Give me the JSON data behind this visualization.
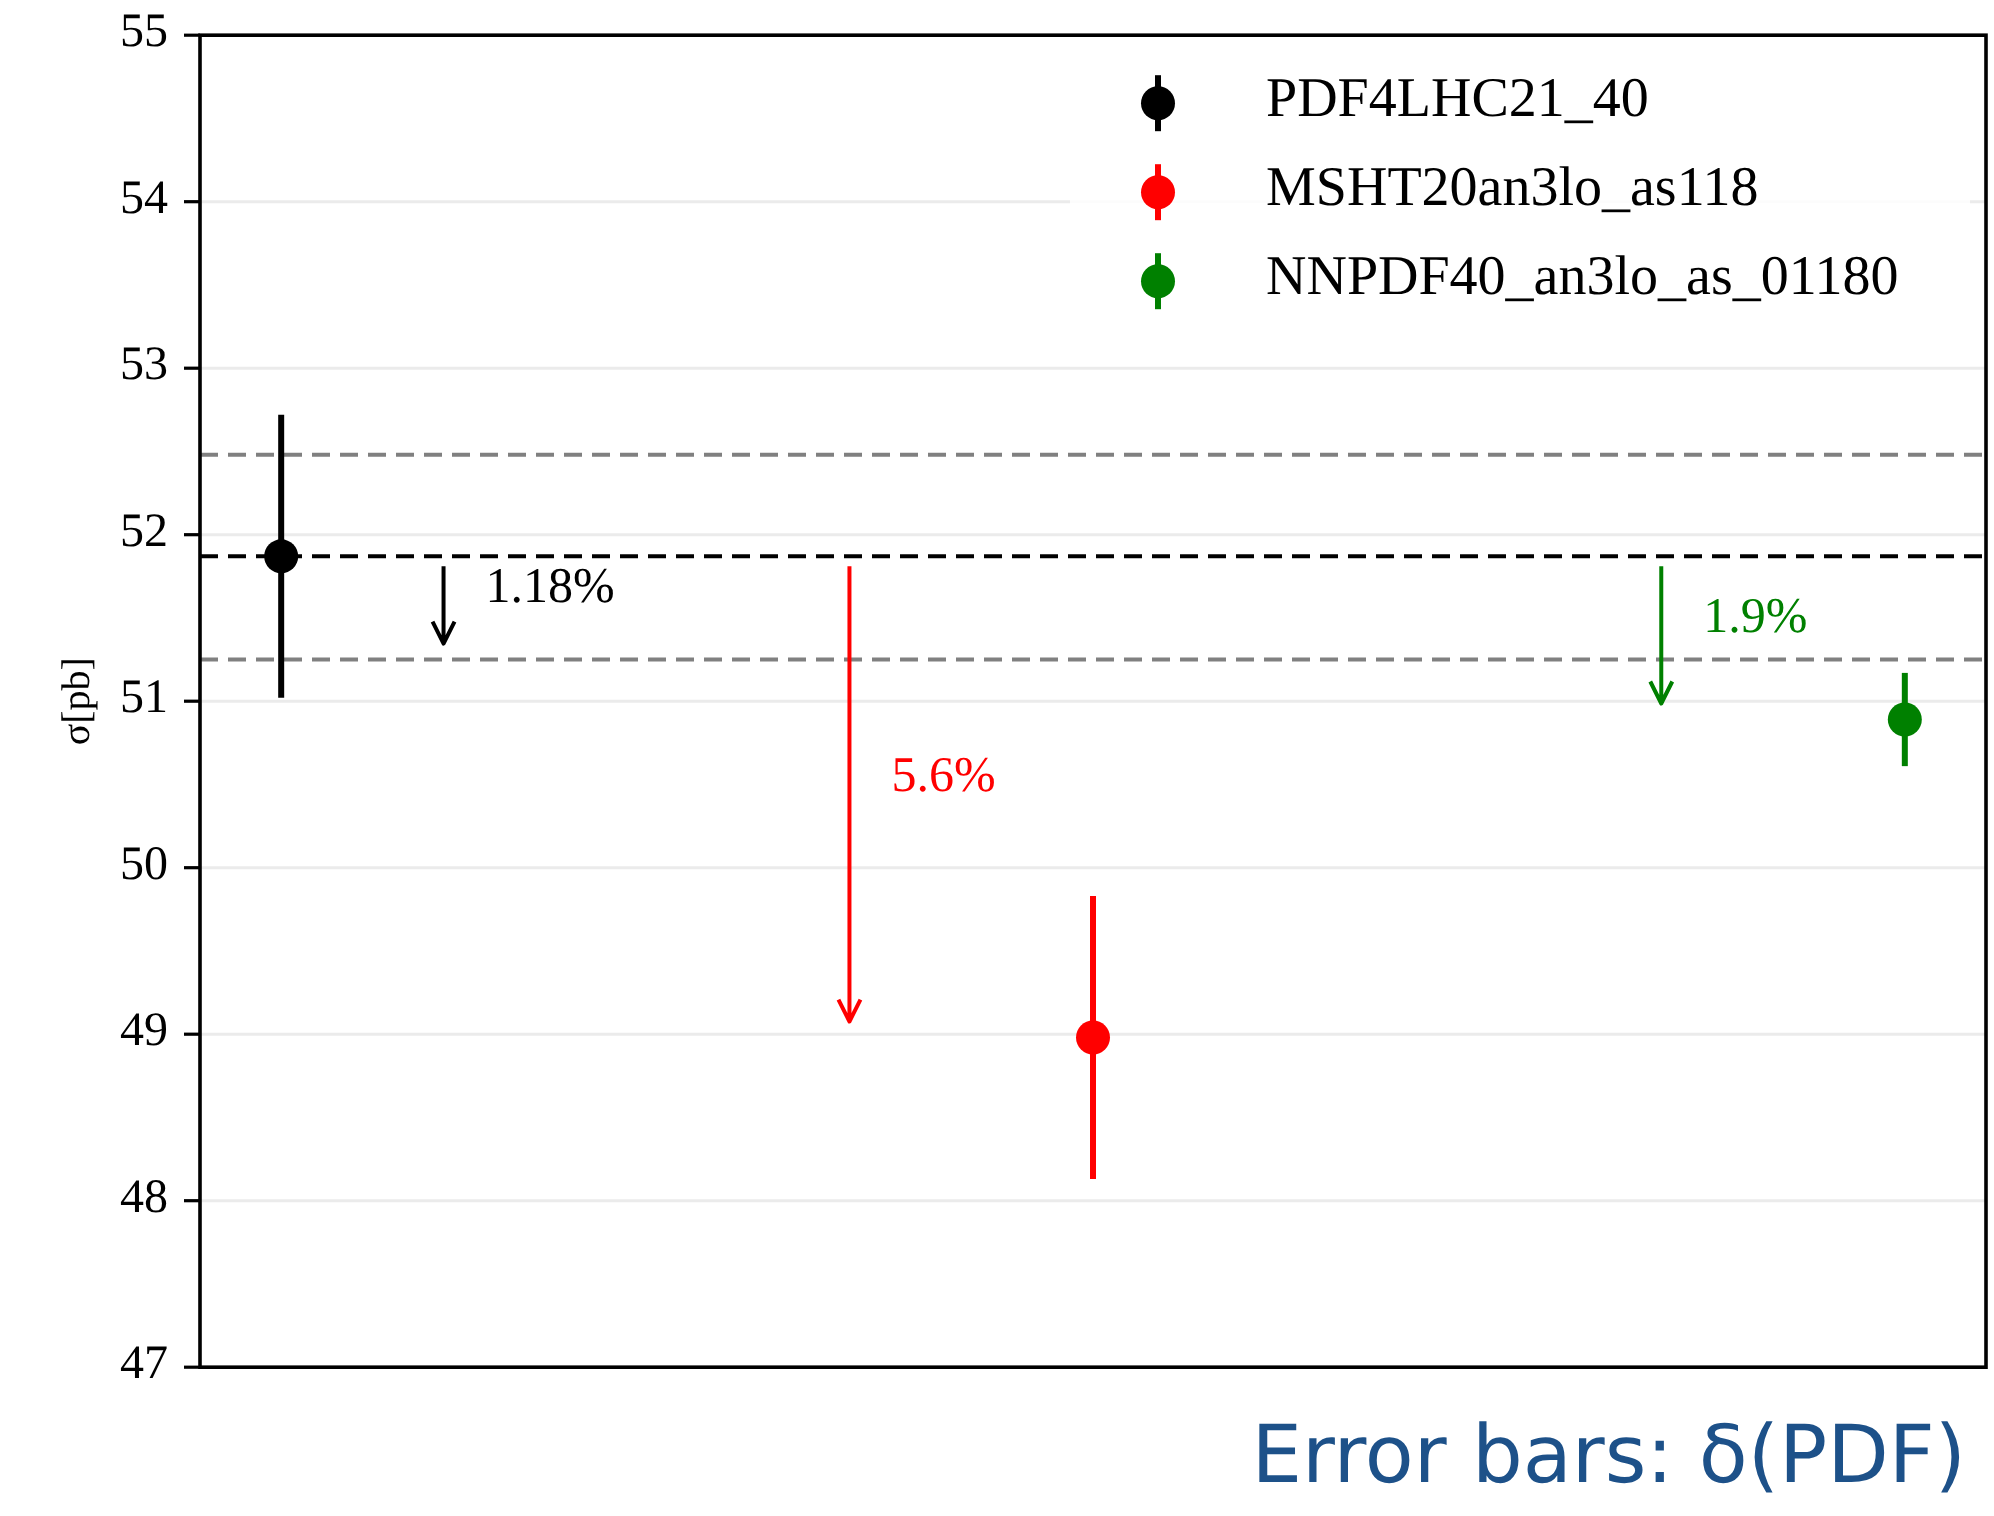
{
  "chart_data": {
    "type": "scatter",
    "categories": [
      null,
      null,
      null
    ],
    "series": [
      {
        "name": "PDF4LHC21_40",
        "color": "#000000",
        "values": [
          51.87,
          null,
          null
        ],
        "errors": [
          0.85,
          null,
          null
        ]
      },
      {
        "name": "MSHT20an3lo_as118",
        "color": "#ff0000",
        "values": [
          null,
          48.98,
          null
        ],
        "errors": [
          null,
          0.85,
          null
        ]
      },
      {
        "name": "NNPDF40_an3lo_as_01180",
        "color": "#008000",
        "values": [
          null,
          null,
          50.89
        ],
        "errors": [
          null,
          null,
          0.28
        ]
      }
    ],
    "ylabel": "σ[pb]",
    "ylim": [
      47,
      55
    ],
    "yticks": [
      47,
      48,
      49,
      50,
      51,
      52,
      53,
      54,
      55
    ],
    "ref_lines": [
      {
        "axis": "y",
        "value": 51.87,
        "color": "#000000",
        "line_style": "dashed"
      },
      {
        "axis": "y",
        "value": 52.48,
        "color": "#808080",
        "line_style": "dashed"
      },
      {
        "axis": "y",
        "value": 51.25,
        "color": "#808080",
        "line_style": "dashed"
      }
    ],
    "annotations": [
      "1.18%",
      "5.6%",
      "1.9%",
      "Error bars: δ(PDF)"
    ],
    "grid": "y",
    "legend": "top right",
    "marker": "circle",
    "tick_labels": "y"
  }
}
